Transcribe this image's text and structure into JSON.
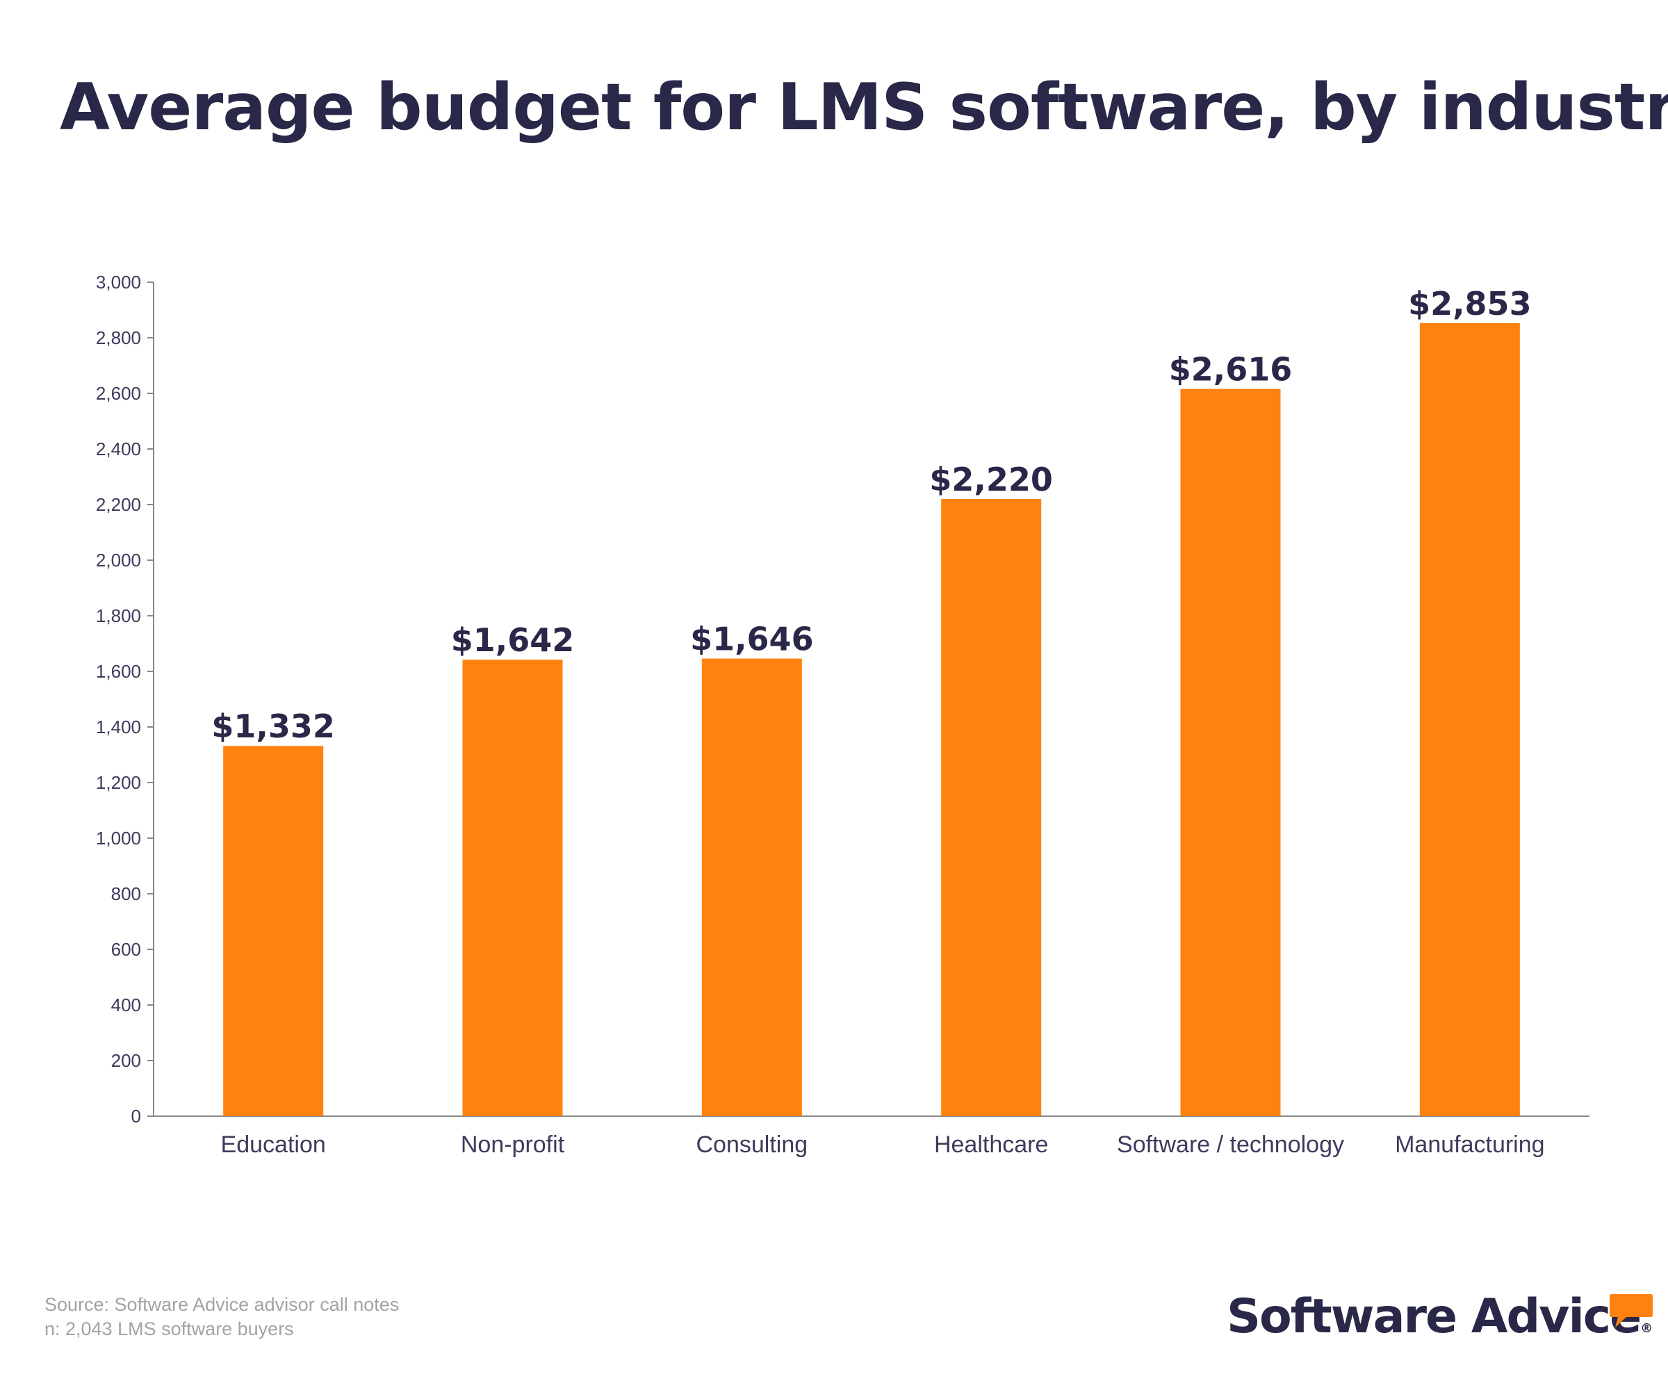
{
  "colors": {
    "bar": "#ff8210",
    "title": "#2a2848",
    "axis_text": "#3d3b5c",
    "axis_line": "#888888",
    "footer_text": "#a3a3a3",
    "brand_accent": "#ff8210"
  },
  "chart_data": {
    "type": "bar",
    "title": "Average budget for LMS software, by industry",
    "xlabel": "",
    "ylabel": "",
    "categories": [
      "Education",
      "Non-profit",
      "Consulting",
      "Healthcare",
      "Software / technology",
      "Manufacturing"
    ],
    "values": [
      1332,
      1642,
      1646,
      2220,
      2616,
      2853
    ],
    "data_labels": [
      "$1,332",
      "$1,642",
      "$1,646",
      "$2,220",
      "$2,616",
      "$2,853"
    ],
    "ylim": [
      0,
      3000
    ],
    "yticks": [
      0,
      200,
      400,
      600,
      800,
      1000,
      1200,
      1400,
      1600,
      1800,
      2000,
      2200,
      2400,
      2600,
      2800,
      3000
    ],
    "ytick_labels": [
      "0",
      "200",
      "400",
      "600",
      "800",
      "1,000",
      "1,200",
      "1,400",
      "1,600",
      "1,800",
      "2,000",
      "2,200",
      "2,400",
      "2,600",
      "2,800",
      "3,000"
    ],
    "grid": false,
    "legend": "none"
  },
  "footer": {
    "source": "Source: Software Advice advisor call notes",
    "sample": "n: 2,043 LMS software buyers"
  },
  "brand": {
    "name": "Software Advice",
    "registered_mark": "®",
    "logo_icon": "speech-bubble-icon"
  }
}
